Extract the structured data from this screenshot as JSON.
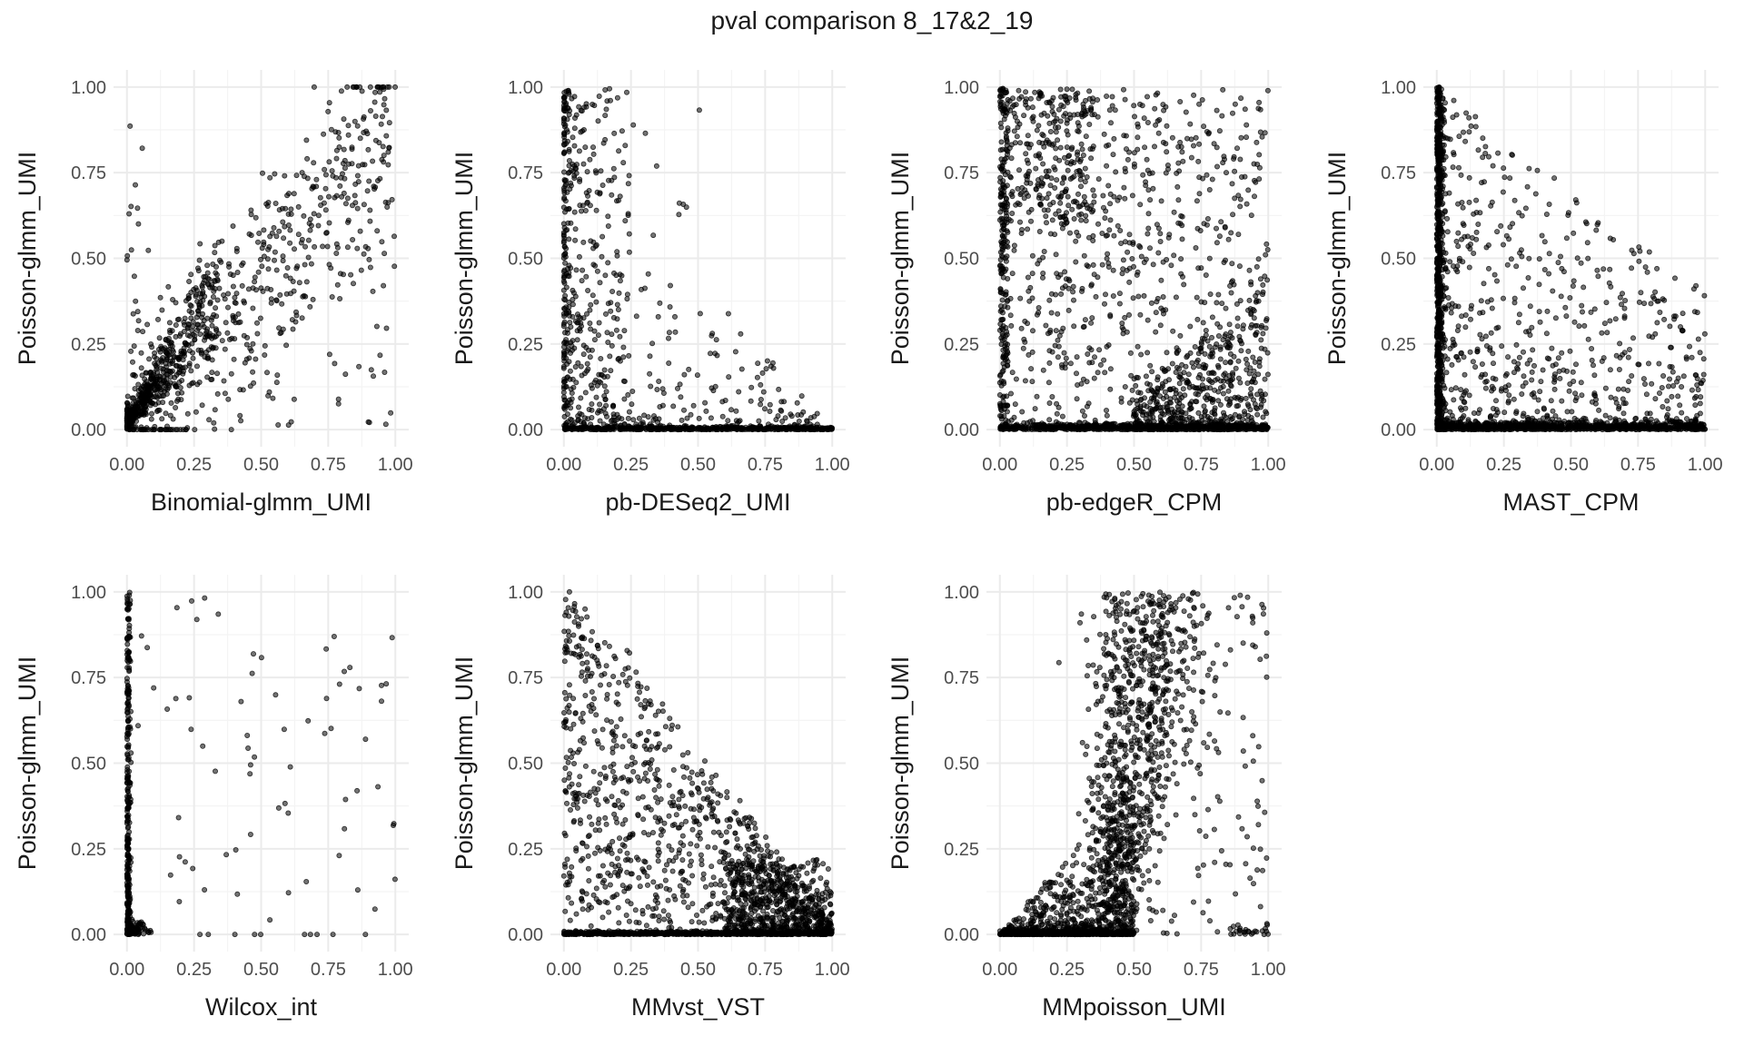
{
  "figure": {
    "title": "pval comparison 8_17&2_19"
  },
  "chart_data": [
    {
      "type": "scatter",
      "xlabel": "Binomial-glmm_UMI",
      "ylabel": "Poisson-glmm_UMI",
      "xlim": [
        0,
        1
      ],
      "ylim": [
        0,
        1
      ],
      "xticks": [
        "0.00",
        "0.25",
        "0.50",
        "0.75",
        "1.00"
      ],
      "yticks": [
        "0.00",
        "0.25",
        "0.50",
        "0.75",
        "1.00"
      ],
      "grid": true,
      "pattern": "diagonal"
    },
    {
      "type": "scatter",
      "xlabel": "pb-DESeq2_UMI",
      "ylabel": "Poisson-glmm_UMI",
      "xlim": [
        0,
        1
      ],
      "ylim": [
        0,
        1
      ],
      "xticks": [
        "0.00",
        "0.25",
        "0.50",
        "0.75",
        "1.00"
      ],
      "yticks": [
        "0.00",
        "0.25",
        "0.50",
        "0.75",
        "1.00"
      ],
      "grid": true,
      "pattern": "l-shape"
    },
    {
      "type": "scatter",
      "xlabel": "pb-edgeR_CPM",
      "ylabel": "Poisson-glmm_UMI",
      "xlim": [
        0,
        1
      ],
      "ylim": [
        0,
        1
      ],
      "xticks": [
        "0.00",
        "0.25",
        "0.50",
        "0.75",
        "1.00"
      ],
      "yticks": [
        "0.00",
        "0.25",
        "0.50",
        "0.75",
        "1.00"
      ],
      "grid": true,
      "pattern": "dispersed"
    },
    {
      "type": "scatter",
      "xlabel": "MAST_CPM",
      "ylabel": "Poisson-glmm_UMI",
      "xlim": [
        0,
        1
      ],
      "ylim": [
        0,
        1
      ],
      "xticks": [
        "0.00",
        "0.25",
        "0.50",
        "0.75",
        "1.00"
      ],
      "yticks": [
        "0.00",
        "0.25",
        "0.50",
        "0.75",
        "1.00"
      ],
      "grid": true,
      "pattern": "left-wall"
    },
    {
      "type": "scatter",
      "xlabel": "Wilcox_int",
      "ylabel": "Poisson-glmm_UMI",
      "xlim": [
        0,
        1
      ],
      "ylim": [
        0,
        1
      ],
      "xticks": [
        "0.00",
        "0.25",
        "0.50",
        "0.75",
        "1.00"
      ],
      "yticks": [
        "0.00",
        "0.25",
        "0.50",
        "0.75",
        "1.00"
      ],
      "grid": true,
      "pattern": "sparse"
    },
    {
      "type": "scatter",
      "xlabel": "MMvst_VST",
      "ylabel": "Poisson-glmm_UMI",
      "xlim": [
        0,
        1
      ],
      "ylim": [
        0,
        1
      ],
      "xticks": [
        "0.00",
        "0.25",
        "0.50",
        "0.75",
        "1.00"
      ],
      "yticks": [
        "0.00",
        "0.25",
        "0.50",
        "0.75",
        "1.00"
      ],
      "grid": true,
      "pattern": "triangle"
    },
    {
      "type": "scatter",
      "xlabel": "MMpoisson_UMI",
      "ylabel": "Poisson-glmm_UMI",
      "xlim": [
        0,
        1
      ],
      "ylim": [
        0,
        1
      ],
      "xticks": [
        "0.00",
        "0.25",
        "0.50",
        "0.75",
        "1.00"
      ],
      "yticks": [
        "0.00",
        "0.25",
        "0.50",
        "0.75",
        "1.00"
      ],
      "grid": true,
      "pattern": "funnel"
    }
  ]
}
